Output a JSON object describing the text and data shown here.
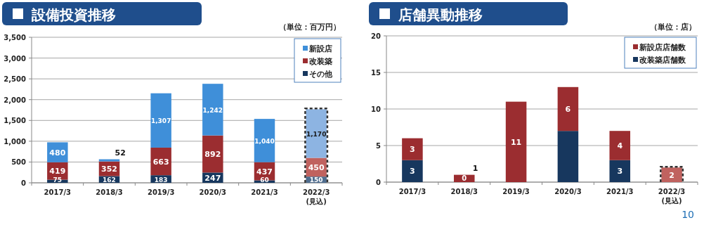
{
  "chart_data": [
    {
      "type": "bar",
      "title": "設備投資推移",
      "annotations": [
        "（単位：百万円）"
      ],
      "categories": [
        "2017/3",
        "2018/3",
        "2019/3",
        "2020/3",
        "2021/3",
        "2022/3(見込)"
      ],
      "stacked": true,
      "grid": "y",
      "legend": "top right",
      "ylim": [
        0,
        3500
      ],
      "yticks": [
        0,
        500,
        {
          "value": 1000,
          "label": "1,000"
        },
        {
          "value": 1500,
          "label": "1,500"
        },
        {
          "value": 2000,
          "label": "2,000"
        },
        {
          "value": 2500,
          "label": "2,500"
        },
        {
          "value": 3000,
          "label": "3,000"
        },
        {
          "value": 3500,
          "label": "3,500"
        }
      ],
      "series": [
        {
          "name": "その他",
          "colors": [
            "#17375e",
            "#17375e",
            "#17375e",
            "#17375e",
            "#17375e",
            "#4f6d8f"
          ],
          "values": [
            75,
            162,
            183,
            247,
            60,
            150
          ],
          "value_labels": [
            "75",
            "162",
            "183",
            "247",
            "60",
            "150"
          ]
        },
        {
          "name": "改装築",
          "colors": [
            "#9b2d30",
            "#9b2d30",
            "#9b2d30",
            "#9b2d30",
            "#9b2d30",
            "#c0625f"
          ],
          "values": [
            419,
            352,
            663,
            892,
            437,
            450
          ],
          "value_labels": [
            "419",
            "352",
            "663",
            "892",
            "437",
            "450"
          ]
        },
        {
          "name": "新設店",
          "colors": [
            "#3f8fd9",
            "#3f8fd9",
            "#3f8fd9",
            "#3f8fd9",
            "#3f8fd9",
            "#8db4e2"
          ],
          "values": [
            480,
            52,
            1307,
            1242,
            1040,
            1170
          ],
          "value_labels": [
            "480",
            "52",
            "1,307",
            "1,242",
            "1,040",
            "1,170"
          ]
        }
      ]
    },
    {
      "type": "bar",
      "title": "店舗異動推移",
      "annotations": [
        "（単位：店）",
        "10"
      ],
      "categories": [
        "2017/3",
        "2018/3",
        "2019/3",
        "2020/3",
        "2021/3",
        "2022/3(見込)"
      ],
      "stacked": true,
      "grid": "y",
      "legend": "top right",
      "ylim": [
        0,
        20
      ],
      "yticks": [
        0,
        5,
        10,
        15,
        20
      ],
      "series": [
        {
          "name": "改装築店舗数",
          "colors": [
            "#17375e",
            "#17375e",
            "#17375e",
            "#17375e",
            "#17375e",
            "#4f6d8f"
          ],
          "values": [
            3,
            0,
            0,
            7,
            3,
            0
          ],
          "value_labels": [
            "3",
            "0",
            null,
            null,
            "3",
            null
          ]
        },
        {
          "name": "新設店店舗数",
          "colors": [
            "#9b2d30",
            "#9b2d30",
            "#9b2d30",
            "#9b2d30",
            "#9b2d30",
            "#c0625f"
          ],
          "values": [
            3,
            1,
            11,
            6,
            4,
            2
          ],
          "value_labels": [
            "3",
            "1",
            "11",
            "6",
            "4",
            "2"
          ]
        }
      ]
    }
  ]
}
